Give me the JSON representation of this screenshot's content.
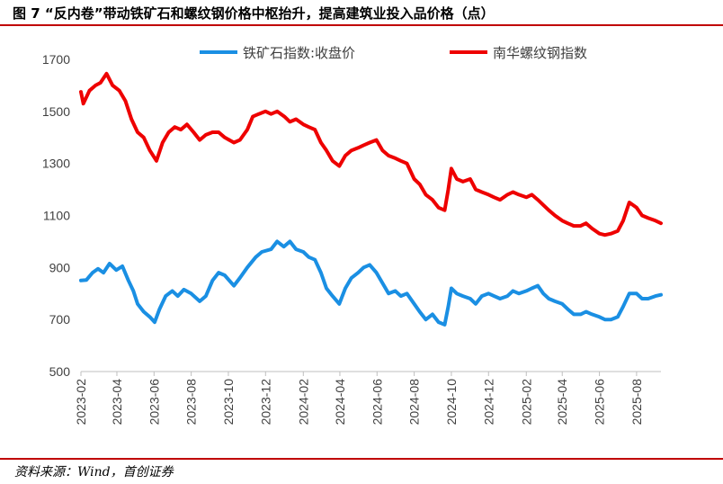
{
  "figure": {
    "title": "图 7 “反内卷”带动铁矿石和螺纹钢价格中枢抬升，提高建筑业投入品价格（点）",
    "source": "资料来源：Wind，首创证券"
  },
  "colors": {
    "iron_ore": "#1a8fe3",
    "rebar": "#ee0000",
    "rule": "#c00000",
    "axis": "#bfbfbf"
  },
  "chart_data": {
    "type": "line",
    "title": "",
    "xlabel": "",
    "ylabel": "",
    "ylim": [
      500,
      1700
    ],
    "yticks": [
      500,
      700,
      900,
      1100,
      1300,
      1500,
      1700
    ],
    "x_range": [
      "2023-02",
      "2025-09"
    ],
    "xticks": [
      "2023-02",
      "2023-04",
      "2023-06",
      "2023-08",
      "2023-10",
      "2023-12",
      "2024-02",
      "2024-04",
      "2024-06",
      "2024-08",
      "2024-10",
      "2024-12",
      "2025-02",
      "2025-04",
      "2025-06",
      "2025-08"
    ],
    "legend_position": "top",
    "series": [
      {
        "name": "铁矿石指数:收盘价",
        "color": "#1a8fe3",
        "points": [
          [
            "2023-02-01",
            850
          ],
          [
            "2023-02-10",
            852
          ],
          [
            "2023-02-20",
            880
          ],
          [
            "2023-03-01",
            895
          ],
          [
            "2023-03-10",
            880
          ],
          [
            "2023-03-20",
            915
          ],
          [
            "2023-03-31",
            890
          ],
          [
            "2023-04-10",
            905
          ],
          [
            "2023-04-20",
            850
          ],
          [
            "2023-04-28",
            810
          ],
          [
            "2023-05-05",
            760
          ],
          [
            "2023-05-15",
            730
          ],
          [
            "2023-05-25",
            710
          ],
          [
            "2023-06-02",
            690
          ],
          [
            "2023-06-10",
            740
          ],
          [
            "2023-06-20",
            790
          ],
          [
            "2023-07-01",
            810
          ],
          [
            "2023-07-10",
            790
          ],
          [
            "2023-07-20",
            815
          ],
          [
            "2023-08-01",
            800
          ],
          [
            "2023-08-15",
            770
          ],
          [
            "2023-08-25",
            790
          ],
          [
            "2023-09-05",
            850
          ],
          [
            "2023-09-15",
            880
          ],
          [
            "2023-09-25",
            870
          ],
          [
            "2023-10-10",
            830
          ],
          [
            "2023-10-20",
            860
          ],
          [
            "2023-11-01",
            900
          ],
          [
            "2023-11-15",
            940
          ],
          [
            "2023-11-25",
            960
          ],
          [
            "2023-12-10",
            970
          ],
          [
            "2023-12-20",
            1000
          ],
          [
            "2023-12-31",
            980
          ],
          [
            "2024-01-10",
            1000
          ],
          [
            "2024-01-20",
            970
          ],
          [
            "2024-02-01",
            960
          ],
          [
            "2024-02-10",
            940
          ],
          [
            "2024-02-20",
            930
          ],
          [
            "2024-03-01",
            880
          ],
          [
            "2024-03-10",
            820
          ],
          [
            "2024-03-20",
            790
          ],
          [
            "2024-03-31",
            760
          ],
          [
            "2024-04-10",
            820
          ],
          [
            "2024-04-20",
            860
          ],
          [
            "2024-05-01",
            880
          ],
          [
            "2024-05-10",
            900
          ],
          [
            "2024-05-20",
            910
          ],
          [
            "2024-05-31",
            880
          ],
          [
            "2024-06-10",
            840
          ],
          [
            "2024-06-20",
            800
          ],
          [
            "2024-07-01",
            810
          ],
          [
            "2024-07-10",
            790
          ],
          [
            "2024-07-20",
            800
          ],
          [
            "2024-08-01",
            760
          ],
          [
            "2024-08-10",
            730
          ],
          [
            "2024-08-20",
            700
          ],
          [
            "2024-08-31",
            720
          ],
          [
            "2024-09-10",
            690
          ],
          [
            "2024-09-20",
            680
          ],
          [
            "2024-09-26",
            750
          ],
          [
            "2024-10-01",
            820
          ],
          [
            "2024-10-10",
            800
          ],
          [
            "2024-10-20",
            790
          ],
          [
            "2024-11-01",
            780
          ],
          [
            "2024-11-10",
            760
          ],
          [
            "2024-11-20",
            790
          ],
          [
            "2024-12-01",
            800
          ],
          [
            "2024-12-10",
            790
          ],
          [
            "2024-12-20",
            780
          ],
          [
            "2025-01-01",
            790
          ],
          [
            "2025-01-10",
            810
          ],
          [
            "2025-01-20",
            800
          ],
          [
            "2025-02-01",
            810
          ],
          [
            "2025-02-10",
            820
          ],
          [
            "2025-02-20",
            830
          ],
          [
            "2025-03-01",
            800
          ],
          [
            "2025-03-10",
            780
          ],
          [
            "2025-03-20",
            770
          ],
          [
            "2025-04-01",
            760
          ],
          [
            "2025-04-10",
            740
          ],
          [
            "2025-04-20",
            720
          ],
          [
            "2025-05-01",
            720
          ],
          [
            "2025-05-10",
            730
          ],
          [
            "2025-05-20",
            720
          ],
          [
            "2025-06-01",
            710
          ],
          [
            "2025-06-10",
            700
          ],
          [
            "2025-06-20",
            700
          ],
          [
            "2025-07-01",
            710
          ],
          [
            "2025-07-10",
            750
          ],
          [
            "2025-07-20",
            800
          ],
          [
            "2025-08-01",
            800
          ],
          [
            "2025-08-10",
            780
          ],
          [
            "2025-08-20",
            780
          ],
          [
            "2025-09-01",
            790
          ],
          [
            "2025-09-10",
            795
          ]
        ]
      },
      {
        "name": "南华螺纹钢指数",
        "color": "#ee0000",
        "points": [
          [
            "2023-02-01",
            1575
          ],
          [
            "2023-02-05",
            1530
          ],
          [
            "2023-02-15",
            1580
          ],
          [
            "2023-02-25",
            1600
          ],
          [
            "2023-03-05",
            1610
          ],
          [
            "2023-03-15",
            1645
          ],
          [
            "2023-03-25",
            1600
          ],
          [
            "2023-04-05",
            1580
          ],
          [
            "2023-04-15",
            1540
          ],
          [
            "2023-04-25",
            1470
          ],
          [
            "2023-05-05",
            1420
          ],
          [
            "2023-05-15",
            1400
          ],
          [
            "2023-05-25",
            1350
          ],
          [
            "2023-06-05",
            1310
          ],
          [
            "2023-06-15",
            1380
          ],
          [
            "2023-06-25",
            1420
          ],
          [
            "2023-07-05",
            1440
          ],
          [
            "2023-07-15",
            1430
          ],
          [
            "2023-07-25",
            1450
          ],
          [
            "2023-08-05",
            1420
          ],
          [
            "2023-08-15",
            1390
          ],
          [
            "2023-08-25",
            1410
          ],
          [
            "2023-09-05",
            1420
          ],
          [
            "2023-09-15",
            1420
          ],
          [
            "2023-09-25",
            1400
          ],
          [
            "2023-10-10",
            1380
          ],
          [
            "2023-10-20",
            1390
          ],
          [
            "2023-11-01",
            1430
          ],
          [
            "2023-11-10",
            1480
          ],
          [
            "2023-11-20",
            1490
          ],
          [
            "2023-12-01",
            1500
          ],
          [
            "2023-12-10",
            1490
          ],
          [
            "2023-12-20",
            1500
          ],
          [
            "2024-01-01",
            1480
          ],
          [
            "2024-01-10",
            1460
          ],
          [
            "2024-01-20",
            1470
          ],
          [
            "2024-02-01",
            1450
          ],
          [
            "2024-02-10",
            1440
          ],
          [
            "2024-02-20",
            1430
          ],
          [
            "2024-03-01",
            1380
          ],
          [
            "2024-03-10",
            1350
          ],
          [
            "2024-03-20",
            1310
          ],
          [
            "2024-03-31",
            1290
          ],
          [
            "2024-04-10",
            1330
          ],
          [
            "2024-04-20",
            1350
          ],
          [
            "2024-05-01",
            1360
          ],
          [
            "2024-05-10",
            1370
          ],
          [
            "2024-05-20",
            1380
          ],
          [
            "2024-05-31",
            1390
          ],
          [
            "2024-06-10",
            1350
          ],
          [
            "2024-06-20",
            1330
          ],
          [
            "2024-07-01",
            1320
          ],
          [
            "2024-07-10",
            1310
          ],
          [
            "2024-07-20",
            1300
          ],
          [
            "2024-08-01",
            1240
          ],
          [
            "2024-08-10",
            1220
          ],
          [
            "2024-08-20",
            1180
          ],
          [
            "2024-08-31",
            1160
          ],
          [
            "2024-09-10",
            1130
          ],
          [
            "2024-09-20",
            1120
          ],
          [
            "2024-09-26",
            1200
          ],
          [
            "2024-10-01",
            1280
          ],
          [
            "2024-10-10",
            1240
          ],
          [
            "2024-10-20",
            1230
          ],
          [
            "2024-11-01",
            1240
          ],
          [
            "2024-11-10",
            1200
          ],
          [
            "2024-11-20",
            1190
          ],
          [
            "2024-12-01",
            1180
          ],
          [
            "2024-12-10",
            1170
          ],
          [
            "2024-12-20",
            1160
          ],
          [
            "2025-01-01",
            1180
          ],
          [
            "2025-01-10",
            1190
          ],
          [
            "2025-01-20",
            1180
          ],
          [
            "2025-02-01",
            1170
          ],
          [
            "2025-02-10",
            1180
          ],
          [
            "2025-02-20",
            1160
          ],
          [
            "2025-03-01",
            1140
          ],
          [
            "2025-03-10",
            1120
          ],
          [
            "2025-03-20",
            1100
          ],
          [
            "2025-04-01",
            1080
          ],
          [
            "2025-04-10",
            1070
          ],
          [
            "2025-04-20",
            1060
          ],
          [
            "2025-05-01",
            1060
          ],
          [
            "2025-05-10",
            1070
          ],
          [
            "2025-05-20",
            1050
          ],
          [
            "2025-06-01",
            1030
          ],
          [
            "2025-06-10",
            1025
          ],
          [
            "2025-06-20",
            1030
          ],
          [
            "2025-07-01",
            1040
          ],
          [
            "2025-07-10",
            1080
          ],
          [
            "2025-07-20",
            1150
          ],
          [
            "2025-08-01",
            1130
          ],
          [
            "2025-08-10",
            1100
          ],
          [
            "2025-08-20",
            1090
          ],
          [
            "2025-09-01",
            1080
          ],
          [
            "2025-09-10",
            1070
          ]
        ]
      }
    ]
  }
}
